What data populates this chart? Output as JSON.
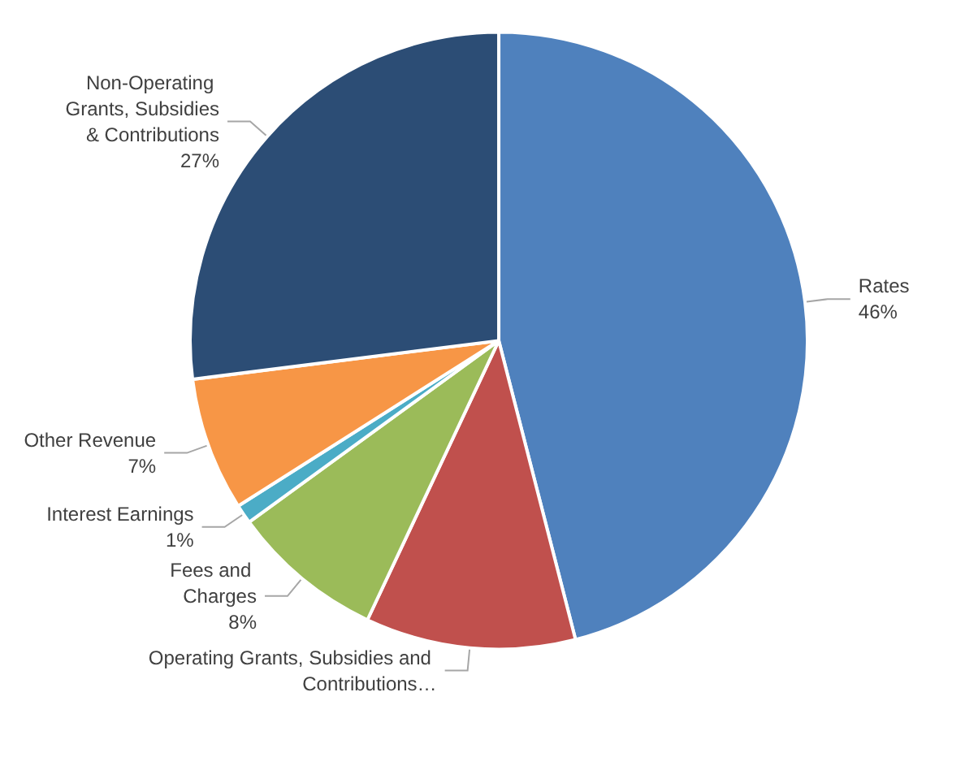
{
  "chart_data": {
    "type": "pie",
    "categories": [
      "Rates",
      "Operating Grants, Subsidies and Contributions…",
      "Fees and Charges",
      "Interest Earnings",
      "Other Revenue",
      "Non-Operating Grants, Subsidies & Contributions"
    ],
    "values": [
      46,
      11,
      8,
      1,
      7,
      27
    ],
    "value_labels": [
      "46%",
      null,
      "8%",
      "1%",
      "7%",
      "27%"
    ],
    "colors": [
      "#4f81bd",
      "#c0504d",
      "#9bbb59",
      "#4bacc6",
      "#f79646",
      "#2c4d75"
    ],
    "legend": false
  }
}
